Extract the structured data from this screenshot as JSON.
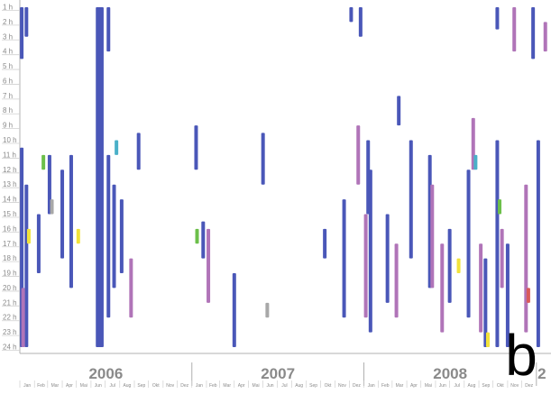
{
  "panel_label": "b",
  "chart_data": {
    "type": "scatter",
    "title": "",
    "xlabel": "",
    "ylabel": "",
    "y_ticks": [
      "1 h",
      "2 h",
      "3 h",
      "4 h",
      "5 h",
      "6 h",
      "7 h",
      "8 h",
      "9 h",
      "10 h",
      "11 h",
      "12 h",
      "13 h",
      "14 h",
      "15 h",
      "16 h",
      "17 h",
      "18 h",
      "19 h",
      "20 h",
      "21 h",
      "22 h",
      "23 h",
      "24 h"
    ],
    "years": [
      "2006",
      "2007",
      "2008",
      "2"
    ],
    "month_ticks": [
      "Jan",
      "Feb",
      "Mar",
      "Apr",
      "Mai",
      "Jun",
      "Jul",
      "Aug",
      "Sep",
      "Okt",
      "Nov",
      "Dez"
    ],
    "xlim": [
      "2006-01",
      "2009-02"
    ],
    "ylim": [
      1,
      24
    ],
    "grid": false,
    "legend": "none",
    "colors": {
      "blue": "#4a57b8",
      "purple": "#b074b8",
      "yellow": "#f2e23a",
      "green": "#6cbf4a",
      "cyan": "#4ab0c8",
      "gray": "#a8a8a8",
      "red": "#d85a5a",
      "axis": "#b0b0b0",
      "text": "#8a8a8a"
    },
    "series": [
      {
        "color": "blue",
        "columns": [
          {
            "x": "2006-01-05",
            "hours": [
              1,
              4.5
            ]
          },
          {
            "x": "2006-01-05",
            "hours": [
              10.5,
              24
            ]
          },
          {
            "x": "2006-01-15",
            "hours": [
              1,
              3
            ]
          },
          {
            "x": "2006-01-15",
            "hours": [
              13,
              24
            ]
          },
          {
            "x": "2006-02-10",
            "hours": [
              15,
              19
            ]
          },
          {
            "x": "2006-03-05",
            "hours": [
              11,
              15
            ]
          },
          {
            "x": "2006-04-01",
            "hours": [
              12,
              18
            ]
          },
          {
            "x": "2006-04-20",
            "hours": [
              11,
              20
            ]
          },
          {
            "x": "2006-06-15",
            "hours": [
              1,
              24
            ]
          },
          {
            "x": "2006-06-18",
            "hours": [
              1,
              24
            ]
          },
          {
            "x": "2006-06-21",
            "hours": [
              1,
              24
            ]
          },
          {
            "x": "2006-06-24",
            "hours": [
              1,
              24
            ]
          },
          {
            "x": "2006-07-08",
            "hours": [
              1,
              4
            ]
          },
          {
            "x": "2006-07-08",
            "hours": [
              11,
              22
            ]
          },
          {
            "x": "2006-07-20",
            "hours": [
              13,
              20
            ]
          },
          {
            "x": "2006-08-05",
            "hours": [
              14,
              19
            ]
          },
          {
            "x": "2006-09-10",
            "hours": [
              9.5,
              12
            ]
          },
          {
            "x": "2007-01-10",
            "hours": [
              9,
              12
            ]
          },
          {
            "x": "2007-01-25",
            "hours": [
              15.5,
              18
            ]
          },
          {
            "x": "2007-04-01",
            "hours": [
              19,
              24
            ]
          },
          {
            "x": "2007-06-01",
            "hours": [
              9.5,
              13
            ]
          },
          {
            "x": "2007-10-10",
            "hours": [
              16,
              18
            ]
          },
          {
            "x": "2007-11-20",
            "hours": [
              14,
              22
            ]
          },
          {
            "x": "2007-12-05",
            "hours": [
              1,
              2
            ]
          },
          {
            "x": "2007-12-25",
            "hours": [
              1,
              3
            ]
          },
          {
            "x": "2008-01-10",
            "hours": [
              10,
              15
            ]
          },
          {
            "x": "2008-01-15",
            "hours": [
              12,
              23
            ]
          },
          {
            "x": "2008-02-20",
            "hours": [
              15,
              21
            ]
          },
          {
            "x": "2008-03-15",
            "hours": [
              7,
              9
            ]
          },
          {
            "x": "2008-04-10",
            "hours": [
              10,
              18
            ]
          },
          {
            "x": "2008-05-20",
            "hours": [
              11,
              20
            ]
          },
          {
            "x": "2008-07-01",
            "hours": [
              16,
              21
            ]
          },
          {
            "x": "2008-08-10",
            "hours": [
              12,
              22
            ]
          },
          {
            "x": "2008-09-15",
            "hours": [
              18,
              24
            ]
          },
          {
            "x": "2008-10-10",
            "hours": [
              1,
              2.5
            ]
          },
          {
            "x": "2008-10-10",
            "hours": [
              10,
              24
            ]
          },
          {
            "x": "2008-11-01",
            "hours": [
              17,
              24
            ]
          },
          {
            "x": "2008-12-25",
            "hours": [
              1,
              4.5
            ]
          },
          {
            "x": "2009-01-05",
            "hours": [
              10,
              24
            ]
          }
        ]
      },
      {
        "color": "purple",
        "columns": [
          {
            "x": "2006-01-08",
            "hours": [
              20,
              24
            ]
          },
          {
            "x": "2006-08-25",
            "hours": [
              18,
              22
            ]
          },
          {
            "x": "2007-02-05",
            "hours": [
              16,
              21
            ]
          },
          {
            "x": "2007-12-20",
            "hours": [
              9,
              13
            ]
          },
          {
            "x": "2008-01-05",
            "hours": [
              15,
              22
            ]
          },
          {
            "x": "2008-03-10",
            "hours": [
              17,
              22
            ]
          },
          {
            "x": "2008-05-25",
            "hours": [
              13,
              20
            ]
          },
          {
            "x": "2008-06-15",
            "hours": [
              17,
              23
            ]
          },
          {
            "x": "2008-08-20",
            "hours": [
              8.5,
              12
            ]
          },
          {
            "x": "2008-09-05",
            "hours": [
              17,
              23
            ]
          },
          {
            "x": "2008-10-20",
            "hours": [
              16,
              20
            ]
          },
          {
            "x": "2008-11-15",
            "hours": [
              1,
              4
            ]
          },
          {
            "x": "2008-12-10",
            "hours": [
              13,
              23
            ]
          },
          {
            "x": "2009-01-20",
            "hours": [
              2,
              4
            ]
          }
        ]
      },
      {
        "color": "yellow",
        "columns": [
          {
            "x": "2006-01-20",
            "hours": [
              16,
              17
            ]
          },
          {
            "x": "2006-05-05",
            "hours": [
              16,
              17
            ]
          },
          {
            "x": "2008-07-20",
            "hours": [
              18,
              19
            ]
          },
          {
            "x": "2008-09-20",
            "hours": [
              23,
              24
            ]
          }
        ]
      },
      {
        "color": "green",
        "columns": [
          {
            "x": "2006-02-20",
            "hours": [
              11,
              12
            ]
          },
          {
            "x": "2007-01-12",
            "hours": [
              16,
              17
            ]
          },
          {
            "x": "2008-10-15",
            "hours": [
              14,
              15
            ]
          }
        ]
      },
      {
        "color": "cyan",
        "columns": [
          {
            "x": "2006-07-25",
            "hours": [
              10,
              11
            ]
          },
          {
            "x": "2008-08-25",
            "hours": [
              11,
              12
            ]
          }
        ]
      },
      {
        "color": "gray",
        "columns": [
          {
            "x": "2006-03-10",
            "hours": [
              14,
              15
            ]
          },
          {
            "x": "2007-06-10",
            "hours": [
              21,
              22
            ]
          }
        ]
      },
      {
        "color": "red",
        "columns": [
          {
            "x": "2008-12-15",
            "hours": [
              20,
              21
            ]
          }
        ]
      }
    ]
  }
}
